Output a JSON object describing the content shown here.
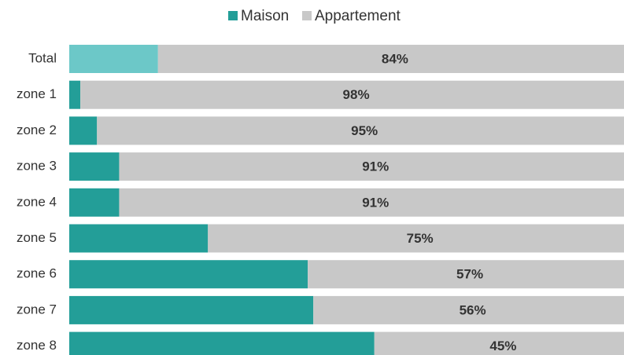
{
  "chart_data": {
    "type": "stacked_barh",
    "categories": [
      "Total",
      "zone 1",
      "zone 2",
      "zone 3",
      "zone 4",
      "zone 5",
      "zone 6",
      "zone 7",
      "zone 8"
    ],
    "series": [
      {
        "name": "Maison",
        "color": "#239e98",
        "colors": [
          "#6cc8c8",
          "#239e98",
          "#239e98",
          "#239e98",
          "#239e98",
          "#239e98",
          "#239e98",
          "#239e98",
          "#239e98"
        ],
        "values": [
          16,
          2,
          5,
          9,
          9,
          25,
          43,
          44,
          55
        ]
      },
      {
        "name": "Appartement",
        "color": "#c8c8c8",
        "values": [
          84,
          98,
          95,
          91,
          91,
          75,
          57,
          56,
          45
        ],
        "value_labels": [
          "84%",
          "98%",
          "95%",
          "91%",
          "91%",
          "75%",
          "57%",
          "56%",
          "45%"
        ]
      }
    ],
    "xlim": [
      0,
      100
    ],
    "legend": "top"
  }
}
